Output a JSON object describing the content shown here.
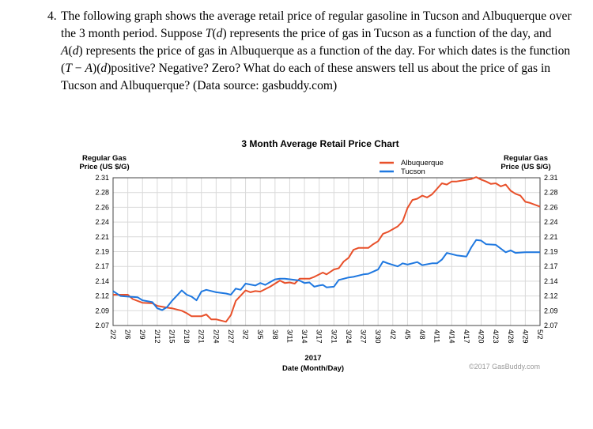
{
  "question": {
    "number": "4.",
    "lines": [
      [
        {
          "t": "The following graph shows the average retail price of regular gasoline in Tucson and Albuquerque over"
        }
      ],
      [
        {
          "t": "the 3 month period.  Suppose "
        },
        {
          "t": "T",
          "i": true
        },
        {
          "t": "("
        },
        {
          "t": "d",
          "i": true
        },
        {
          "t": ") represents the price of gas in Tucson as a function of the day, and"
        }
      ],
      [
        {
          "t": "A",
          "i": true
        },
        {
          "t": "("
        },
        {
          "t": "d",
          "i": true
        },
        {
          "t": ") represents the price of gas in Albuquerque as a function of the day.  For which dates is the function"
        }
      ],
      [
        {
          "t": "("
        },
        {
          "t": "T",
          "i": true
        },
        {
          "t": " − "
        },
        {
          "t": "A",
          "i": true
        },
        {
          "t": ")("
        },
        {
          "t": "d",
          "i": true
        },
        {
          "t": ")positive?  Negative?  Zero?  What do each of these answers tell us about the price of gas in"
        }
      ],
      [
        {
          "t": "Tucson and Albuquerque? (Data source: gasbuddy.com)"
        }
      ]
    ]
  },
  "chart_data": {
    "type": "line",
    "title": "3 Month Average Retail Price Chart",
    "ylabel_left": [
      "Regular Gas",
      "Price (US $/G)"
    ],
    "ylabel_right": [
      "Regular Gas",
      "Price (US $/G)"
    ],
    "xlabel_year": "2017",
    "xlabel": "Date (Month/Day)",
    "copyright": "©2017 GasBuddy.com",
    "ylim": [
      2.07,
      2.31
    ],
    "y_ticks": [
      "2.31",
      "2.28",
      "2.26",
      "2.24",
      "2.21",
      "2.19",
      "2.17",
      "2.14",
      "2.12",
      "2.09",
      "2.07"
    ],
    "x_ticks": [
      "2/2",
      "2/6",
      "2/9",
      "2/12",
      "2/15",
      "2/18",
      "2/21",
      "2/24",
      "2/27",
      "3/2",
      "3/5",
      "3/8",
      "3/11",
      "3/14",
      "3/17",
      "3/21",
      "3/24",
      "3/27",
      "3/30",
      "4/2",
      "4/5",
      "4/8",
      "4/11",
      "4/14",
      "4/17",
      "4/20",
      "4/23",
      "4/26",
      "4/29",
      "5/2"
    ],
    "grid": true,
    "legend_position": "top-right",
    "series": [
      {
        "name": "Albuquerque",
        "color": "#e8502a",
        "points": [
          [
            "2/2",
            2.12
          ],
          [
            "2/6",
            2.12
          ],
          [
            "2/7",
            2.113
          ],
          [
            "2/9",
            2.107
          ],
          [
            "2/11",
            2.106
          ],
          [
            "2/12",
            2.102
          ],
          [
            "2/14",
            2.099
          ],
          [
            "2/15",
            2.098
          ],
          [
            "2/17",
            2.094
          ],
          [
            "2/18",
            2.09
          ],
          [
            "2/19",
            2.085
          ],
          [
            "2/21",
            2.085
          ],
          [
            "2/22",
            2.088
          ],
          [
            "2/23",
            2.08
          ],
          [
            "2/24",
            2.08
          ],
          [
            "2/26",
            2.076
          ],
          [
            "2/27",
            2.087
          ],
          [
            "2/28",
            2.11
          ],
          [
            "3/2",
            2.127
          ],
          [
            "3/3",
            2.124
          ],
          [
            "3/4",
            2.126
          ],
          [
            "3/5",
            2.125
          ],
          [
            "3/7",
            2.133
          ],
          [
            "3/9",
            2.143
          ],
          [
            "3/10",
            2.139
          ],
          [
            "3/11",
            2.14
          ],
          [
            "3/12",
            2.138
          ],
          [
            "3/13",
            2.146
          ],
          [
            "3/15",
            2.146
          ],
          [
            "3/16",
            2.149
          ],
          [
            "3/18",
            2.156
          ],
          [
            "3/19",
            2.153
          ],
          [
            "3/21",
            2.161
          ],
          [
            "3/22",
            2.163
          ],
          [
            "3/23",
            2.174
          ],
          [
            "3/24",
            2.18
          ],
          [
            "3/25",
            2.193
          ],
          [
            "3/26",
            2.196
          ],
          [
            "3/28",
            2.196
          ],
          [
            "3/29",
            2.202
          ],
          [
            "3/30",
            2.207
          ],
          [
            "3/31",
            2.219
          ],
          [
            "4/1",
            2.222
          ],
          [
            "4/3",
            2.231
          ],
          [
            "4/4",
            2.239
          ],
          [
            "4/5",
            2.261
          ],
          [
            "4/6",
            2.274
          ],
          [
            "4/7",
            2.276
          ],
          [
            "4/8",
            2.281
          ],
          [
            "4/9",
            2.278
          ],
          [
            "4/10",
            2.283
          ],
          [
            "4/12",
            2.301
          ],
          [
            "4/13",
            2.299
          ],
          [
            "4/14",
            2.304
          ],
          [
            "4/15",
            2.304
          ],
          [
            "4/18",
            2.308
          ],
          [
            "4/19",
            2.311
          ],
          [
            "4/20",
            2.307
          ],
          [
            "4/21",
            2.304
          ],
          [
            "4/22",
            2.3
          ],
          [
            "4/23",
            2.301
          ],
          [
            "4/24",
            2.296
          ],
          [
            "4/25",
            2.299
          ],
          [
            "4/26",
            2.289
          ],
          [
            "4/27",
            2.284
          ],
          [
            "4/28",
            2.281
          ],
          [
            "4/29",
            2.271
          ],
          [
            "4/30",
            2.269
          ],
          [
            "5/2",
            2.263
          ]
        ]
      },
      {
        "name": "Tucson",
        "color": "#1f78e0",
        "points": [
          [
            "2/2",
            2.126
          ],
          [
            "2/4",
            2.118
          ],
          [
            "2/6",
            2.117
          ],
          [
            "2/8",
            2.116
          ],
          [
            "2/9",
            2.111
          ],
          [
            "2/11",
            2.108
          ],
          [
            "2/12",
            2.098
          ],
          [
            "2/13",
            2.095
          ],
          [
            "2/14",
            2.1
          ],
          [
            "2/15",
            2.11
          ],
          [
            "2/17",
            2.127
          ],
          [
            "2/18",
            2.12
          ],
          [
            "2/19",
            2.117
          ],
          [
            "2/20",
            2.111
          ],
          [
            "2/21",
            2.125
          ],
          [
            "2/22",
            2.128
          ],
          [
            "2/24",
            2.124
          ],
          [
            "2/26",
            2.122
          ],
          [
            "2/27",
            2.12
          ],
          [
            "2/28",
            2.13
          ],
          [
            "3/1",
            2.128
          ],
          [
            "3/2",
            2.138
          ],
          [
            "3/4",
            2.135
          ],
          [
            "3/5",
            2.139
          ],
          [
            "3/6",
            2.136
          ],
          [
            "3/8",
            2.145
          ],
          [
            "3/9",
            2.146
          ],
          [
            "3/10",
            2.146
          ],
          [
            "3/12",
            2.144
          ],
          [
            "3/13",
            2.143
          ],
          [
            "3/14",
            2.139
          ],
          [
            "3/15",
            2.14
          ],
          [
            "3/16",
            2.133
          ],
          [
            "3/17",
            2.135
          ],
          [
            "3/18",
            2.136
          ],
          [
            "3/19",
            2.132
          ],
          [
            "3/21",
            2.133
          ],
          [
            "3/22",
            2.144
          ],
          [
            "3/23",
            2.146
          ],
          [
            "3/24",
            2.148
          ],
          [
            "3/25",
            2.149
          ],
          [
            "3/27",
            2.153
          ],
          [
            "3/28",
            2.154
          ],
          [
            "3/30",
            2.161
          ],
          [
            "3/31",
            2.174
          ],
          [
            "4/1",
            2.171
          ],
          [
            "4/3",
            2.166
          ],
          [
            "4/4",
            2.171
          ],
          [
            "4/5",
            2.169
          ],
          [
            "4/7",
            2.173
          ],
          [
            "4/8",
            2.168
          ],
          [
            "4/10",
            2.171
          ],
          [
            "4/11",
            2.171
          ],
          [
            "4/12",
            2.177
          ],
          [
            "4/13",
            2.188
          ],
          [
            "4/15",
            2.184
          ],
          [
            "4/17",
            2.182
          ],
          [
            "4/18",
            2.197
          ],
          [
            "4/19",
            2.209
          ],
          [
            "4/20",
            2.208
          ],
          [
            "4/21",
            2.202
          ],
          [
            "4/23",
            2.201
          ],
          [
            "4/25",
            2.189
          ],
          [
            "4/26",
            2.192
          ],
          [
            "4/27",
            2.188
          ],
          [
            "4/29",
            2.189
          ],
          [
            "5/2",
            2.189
          ]
        ]
      }
    ]
  }
}
